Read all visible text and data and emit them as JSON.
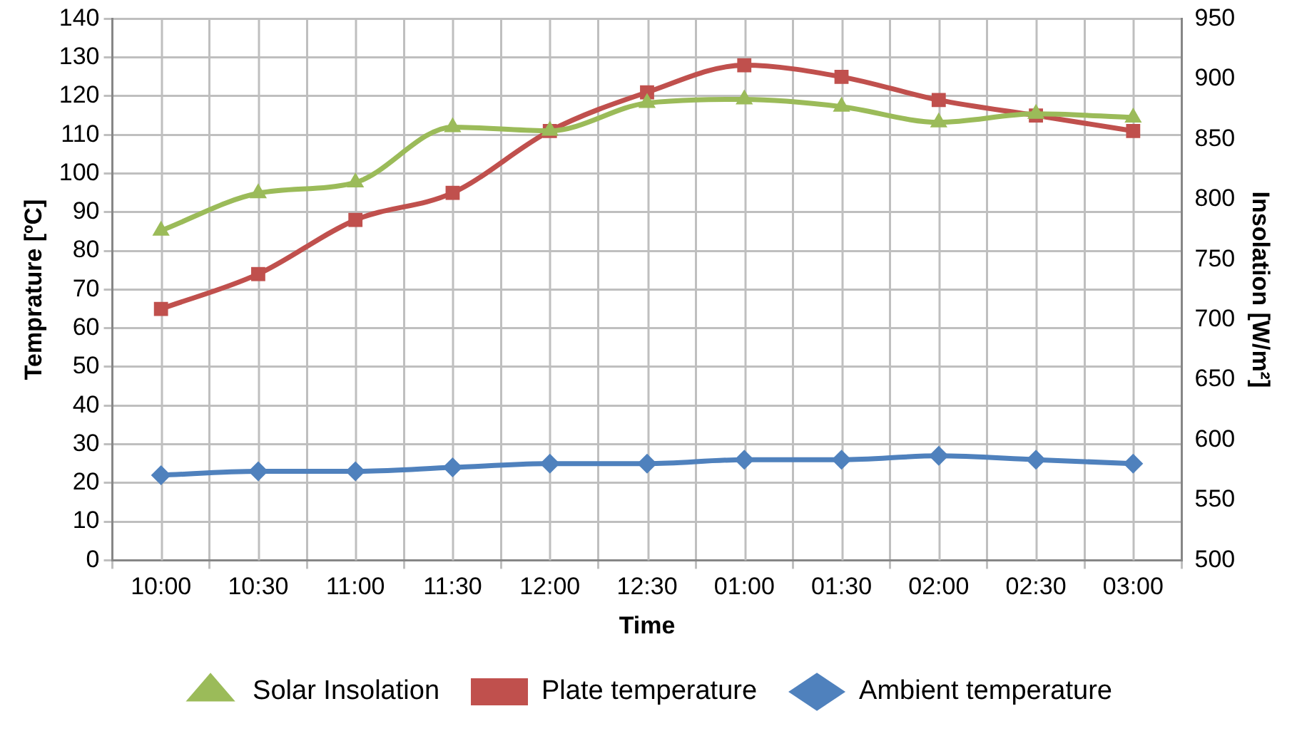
{
  "chart_data": {
    "type": "line",
    "xlabel": "Time",
    "ylabel": "Temprature [ºC]",
    "y2label": "Insolation [W/m²]",
    "categories": [
      "10:00",
      "10:30",
      "11:00",
      "11:30",
      "12:00",
      "12:30",
      "01:00",
      "01:30",
      "02:00",
      "02:30",
      "03:00"
    ],
    "series": [
      {
        "name": "Ambient temperature",
        "color": "#4f81bd",
        "marker": "diamond",
        "values": [
          22,
          23,
          23,
          24,
          25,
          25,
          26,
          26,
          27,
          26,
          25
        ]
      },
      {
        "name": "Plate temperature",
        "color": "#c0504d",
        "marker": "square",
        "values": [
          65,
          74,
          88,
          95,
          111,
          121,
          128,
          125,
          119,
          115,
          111
        ]
      },
      {
        "name": "Solar Insolation",
        "color": "#9bbb59",
        "marker": "triangle",
        "axis": "y2",
        "values": [
          774,
          805,
          814,
          860,
          857,
          880,
          883,
          877,
          864,
          871,
          868
        ]
      }
    ],
    "ylim": [
      0,
      140
    ],
    "yticks": [
      0,
      10,
      20,
      30,
      40,
      50,
      60,
      70,
      80,
      90,
      100,
      110,
      120,
      130,
      140
    ],
    "y2lim": [
      500,
      950
    ],
    "y2ticks": [
      500,
      550,
      600,
      650,
      700,
      750,
      800,
      850,
      900,
      950
    ],
    "grid": true,
    "legend": "bottom"
  }
}
